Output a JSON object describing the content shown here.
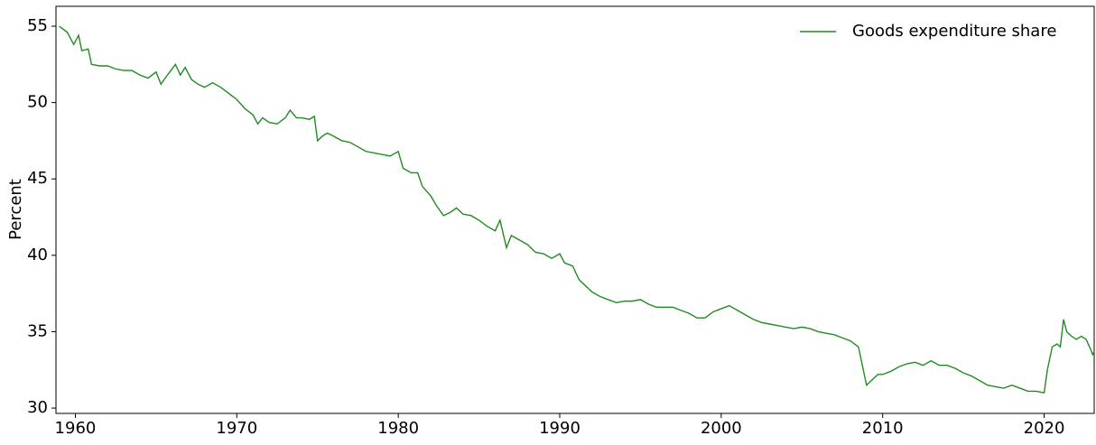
{
  "chart_data": {
    "type": "line",
    "y_label": "Percent",
    "xlim": [
      1958.8,
      2023.1
    ],
    "ylim": [
      29.65,
      56.3
    ],
    "xticks": [
      1960,
      1970,
      1980,
      1990,
      2000,
      2010,
      2020
    ],
    "yticks": [
      30,
      35,
      40,
      45,
      50,
      55
    ],
    "legend": "upper right",
    "x": [
      1959.0,
      1959.5,
      1959.9,
      1960.2,
      1960.4,
      1960.8,
      1961.0,
      1961.5,
      1962.0,
      1962.5,
      1963.0,
      1963.5,
      1964.0,
      1964.5,
      1965.0,
      1965.3,
      1965.7,
      1966.2,
      1966.5,
      1966.8,
      1967.2,
      1967.6,
      1968.0,
      1968.5,
      1969.0,
      1969.5,
      1970.0,
      1970.5,
      1971.0,
      1971.3,
      1971.6,
      1972.0,
      1972.5,
      1973.0,
      1973.3,
      1973.7,
      1974.0,
      1974.5,
      1974.8,
      1975.0,
      1975.3,
      1975.6,
      1976.0,
      1976.5,
      1977.0,
      1977.5,
      1978.0,
      1978.5,
      1979.0,
      1979.5,
      1980.0,
      1980.3,
      1980.8,
      1981.2,
      1981.5,
      1982.0,
      1982.4,
      1982.8,
      1983.2,
      1983.6,
      1984.0,
      1984.5,
      1985.0,
      1985.5,
      1986.0,
      1986.3,
      1986.7,
      1987.0,
      1987.5,
      1988.0,
      1988.5,
      1989.0,
      1989.5,
      1990.0,
      1990.3,
      1990.8,
      1991.2,
      1991.6,
      1992.0,
      1992.5,
      1993.0,
      1993.5,
      1994.0,
      1994.5,
      1995.0,
      1995.5,
      1996.0,
      1996.5,
      1997.0,
      1997.5,
      1998.0,
      1998.5,
      1999.0,
      1999.5,
      2000.0,
      2000.5,
      2001.0,
      2001.5,
      2002.0,
      2002.5,
      2003.0,
      2003.5,
      2004.0,
      2004.5,
      2005.0,
      2005.5,
      2006.0,
      2006.5,
      2007.0,
      2007.5,
      2008.0,
      2008.5,
      2008.8,
      2009.0,
      2009.3,
      2009.7,
      2010.0,
      2010.5,
      2011.0,
      2011.5,
      2012.0,
      2012.5,
      2013.0,
      2013.5,
      2014.0,
      2014.5,
      2015.0,
      2015.5,
      2016.0,
      2016.5,
      2017.0,
      2017.5,
      2018.0,
      2018.5,
      2019.0,
      2019.5,
      2020.0,
      2020.2,
      2020.5,
      2020.8,
      2021.0,
      2021.2,
      2021.4,
      2021.7,
      2022.0,
      2022.3,
      2022.6,
      2022.9,
      2023.0,
      2023.1
    ],
    "series": [
      {
        "name": "Goods expenditure share",
        "color": "#228b22",
        "values": [
          55.0,
          54.6,
          53.8,
          54.4,
          53.4,
          53.5,
          52.5,
          52.4,
          52.4,
          52.2,
          52.1,
          52.1,
          51.8,
          51.6,
          52.0,
          51.2,
          51.8,
          52.5,
          51.8,
          52.3,
          51.5,
          51.2,
          51.0,
          51.3,
          51.0,
          50.6,
          50.2,
          49.6,
          49.2,
          48.6,
          49.0,
          48.7,
          48.6,
          49.0,
          49.5,
          49.0,
          49.0,
          48.9,
          49.1,
          47.5,
          47.8,
          48.0,
          47.8,
          47.5,
          47.4,
          47.1,
          46.8,
          46.7,
          46.6,
          46.5,
          46.8,
          45.7,
          45.4,
          45.4,
          44.5,
          43.9,
          43.2,
          42.6,
          42.8,
          43.1,
          42.7,
          42.6,
          42.3,
          41.9,
          41.6,
          42.3,
          40.5,
          41.3,
          41.0,
          40.7,
          40.2,
          40.1,
          39.8,
          40.1,
          39.5,
          39.3,
          38.4,
          38.0,
          37.6,
          37.3,
          37.1,
          36.9,
          37.0,
          37.0,
          37.1,
          36.8,
          36.6,
          36.6,
          36.6,
          36.4,
          36.2,
          35.9,
          35.9,
          36.3,
          36.5,
          36.7,
          36.4,
          36.1,
          35.8,
          35.6,
          35.5,
          35.4,
          35.3,
          35.2,
          35.3,
          35.2,
          35.0,
          34.9,
          34.8,
          34.6,
          34.4,
          34.0,
          32.5,
          31.5,
          31.8,
          32.2,
          32.2,
          32.4,
          32.7,
          32.9,
          33.0,
          32.8,
          33.1,
          32.8,
          32.8,
          32.6,
          32.3,
          32.1,
          31.8,
          31.5,
          31.4,
          31.3,
          31.5,
          31.3,
          31.1,
          31.1,
          31.0,
          32.5,
          34.0,
          34.2,
          34.0,
          35.8,
          35.0,
          34.7,
          34.5,
          34.7,
          34.5,
          33.8,
          33.5,
          33.7
        ]
      }
    ]
  }
}
